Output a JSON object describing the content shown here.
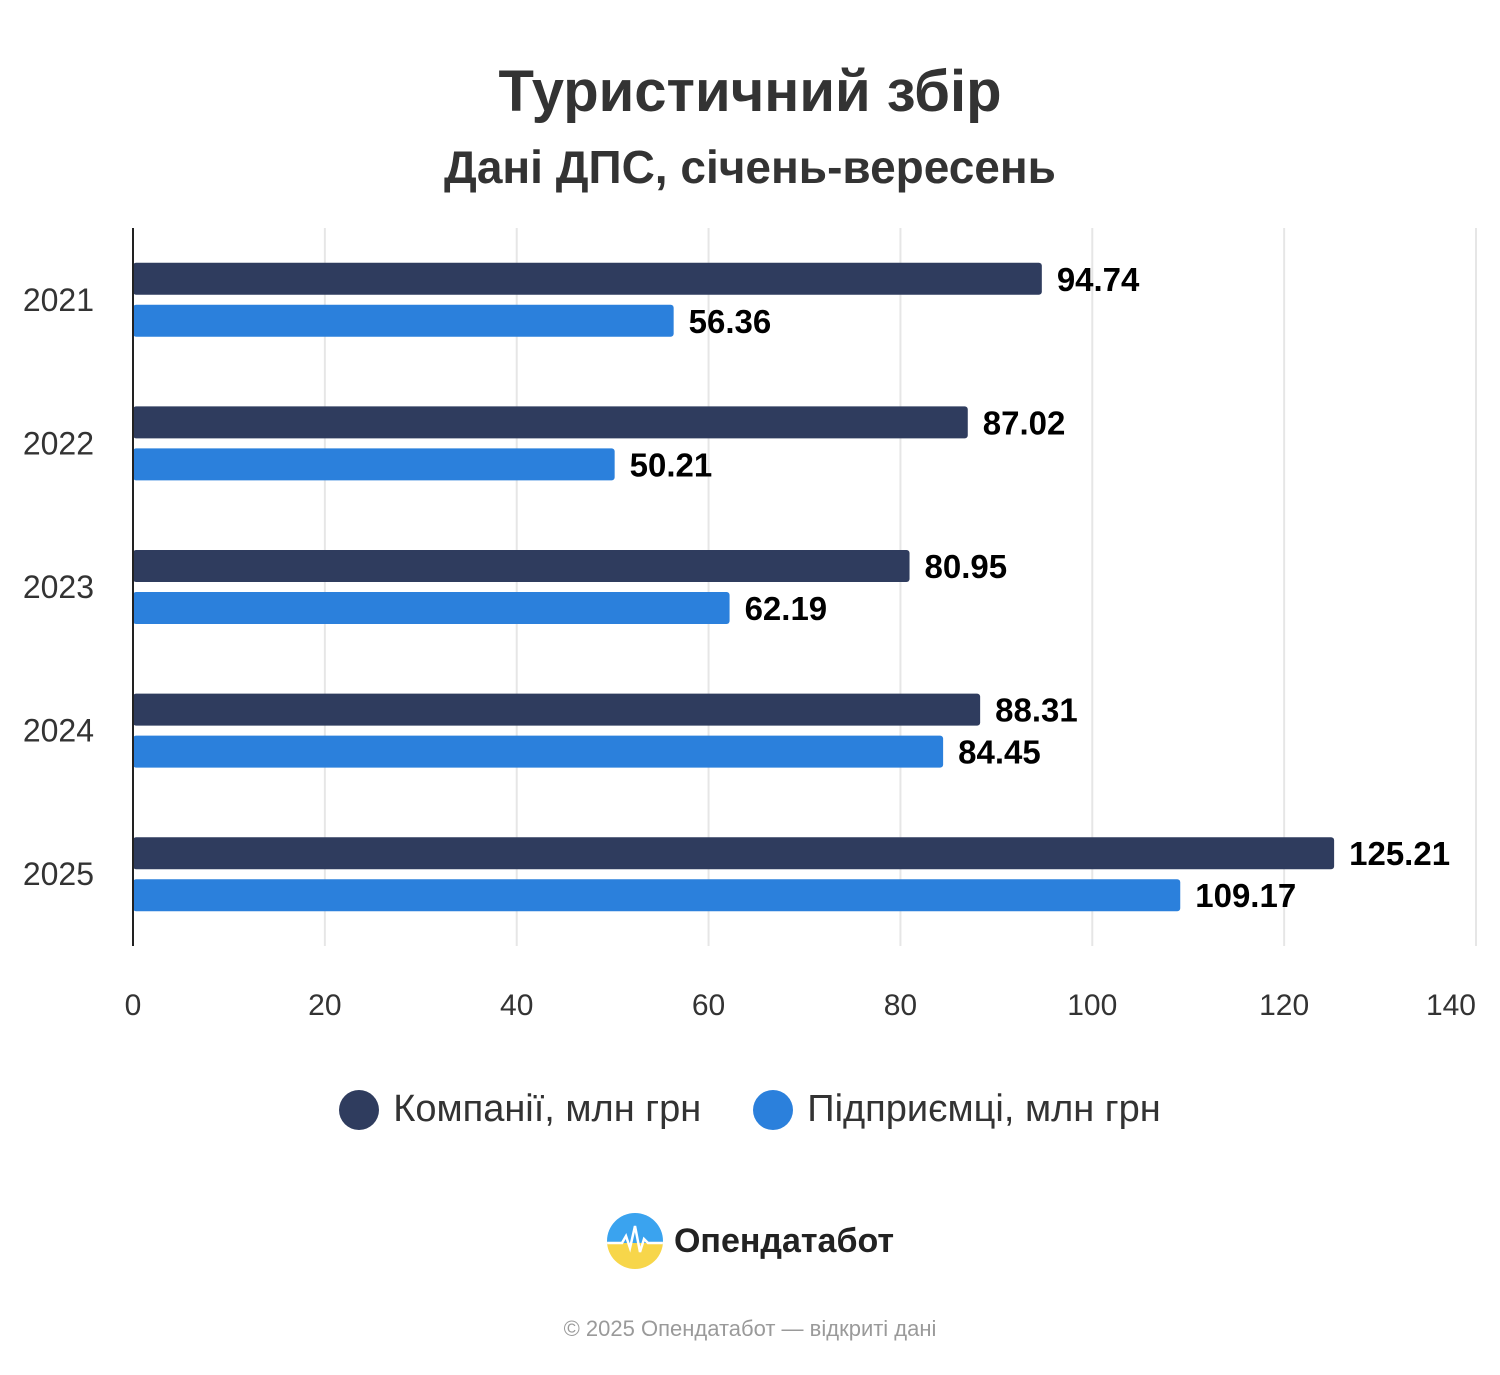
{
  "header": {
    "title": "Туристичний збір",
    "subtitle": "Дані ДПС, січень-вересень"
  },
  "chart_data": {
    "type": "bar",
    "orientation": "horizontal",
    "title": "Туристичний збір",
    "subtitle": "Дані ДПС, січень-вересень",
    "xlabel": "",
    "ylabel": "",
    "categories": [
      "2021",
      "2022",
      "2023",
      "2024",
      "2025"
    ],
    "series": [
      {
        "name": "Компанії, млн грн",
        "color": "#2f3c5e",
        "values": [
          94.74,
          87.02,
          80.95,
          88.31,
          125.21
        ],
        "labels": [
          "94.74",
          "87.02",
          "80.95",
          "88.31",
          "125.21"
        ]
      },
      {
        "name": "Підприємці, млн грн",
        "color": "#2b80dc",
        "values": [
          56.36,
          50.21,
          62.19,
          84.45,
          109.17
        ],
        "labels": [
          "56.36",
          "50.21",
          "62.19",
          "84.45",
          "109.17"
        ]
      }
    ],
    "xlim": [
      0,
      140
    ],
    "xticks": [
      "0",
      "20",
      "40",
      "60",
      "80",
      "100",
      "120",
      "140"
    ],
    "grid": true,
    "legend": "bottom",
    "data_labels": true
  },
  "legend": {
    "items": [
      {
        "label": "Компанії, млн грн",
        "color": "#2f3c5e"
      },
      {
        "label": "Підприємці, млн грн",
        "color": "#2b80dc"
      }
    ]
  },
  "brand": {
    "name": "Опендатабот"
  },
  "footer": {
    "text": "© 2025 Опендатабот — відкриті дані"
  }
}
